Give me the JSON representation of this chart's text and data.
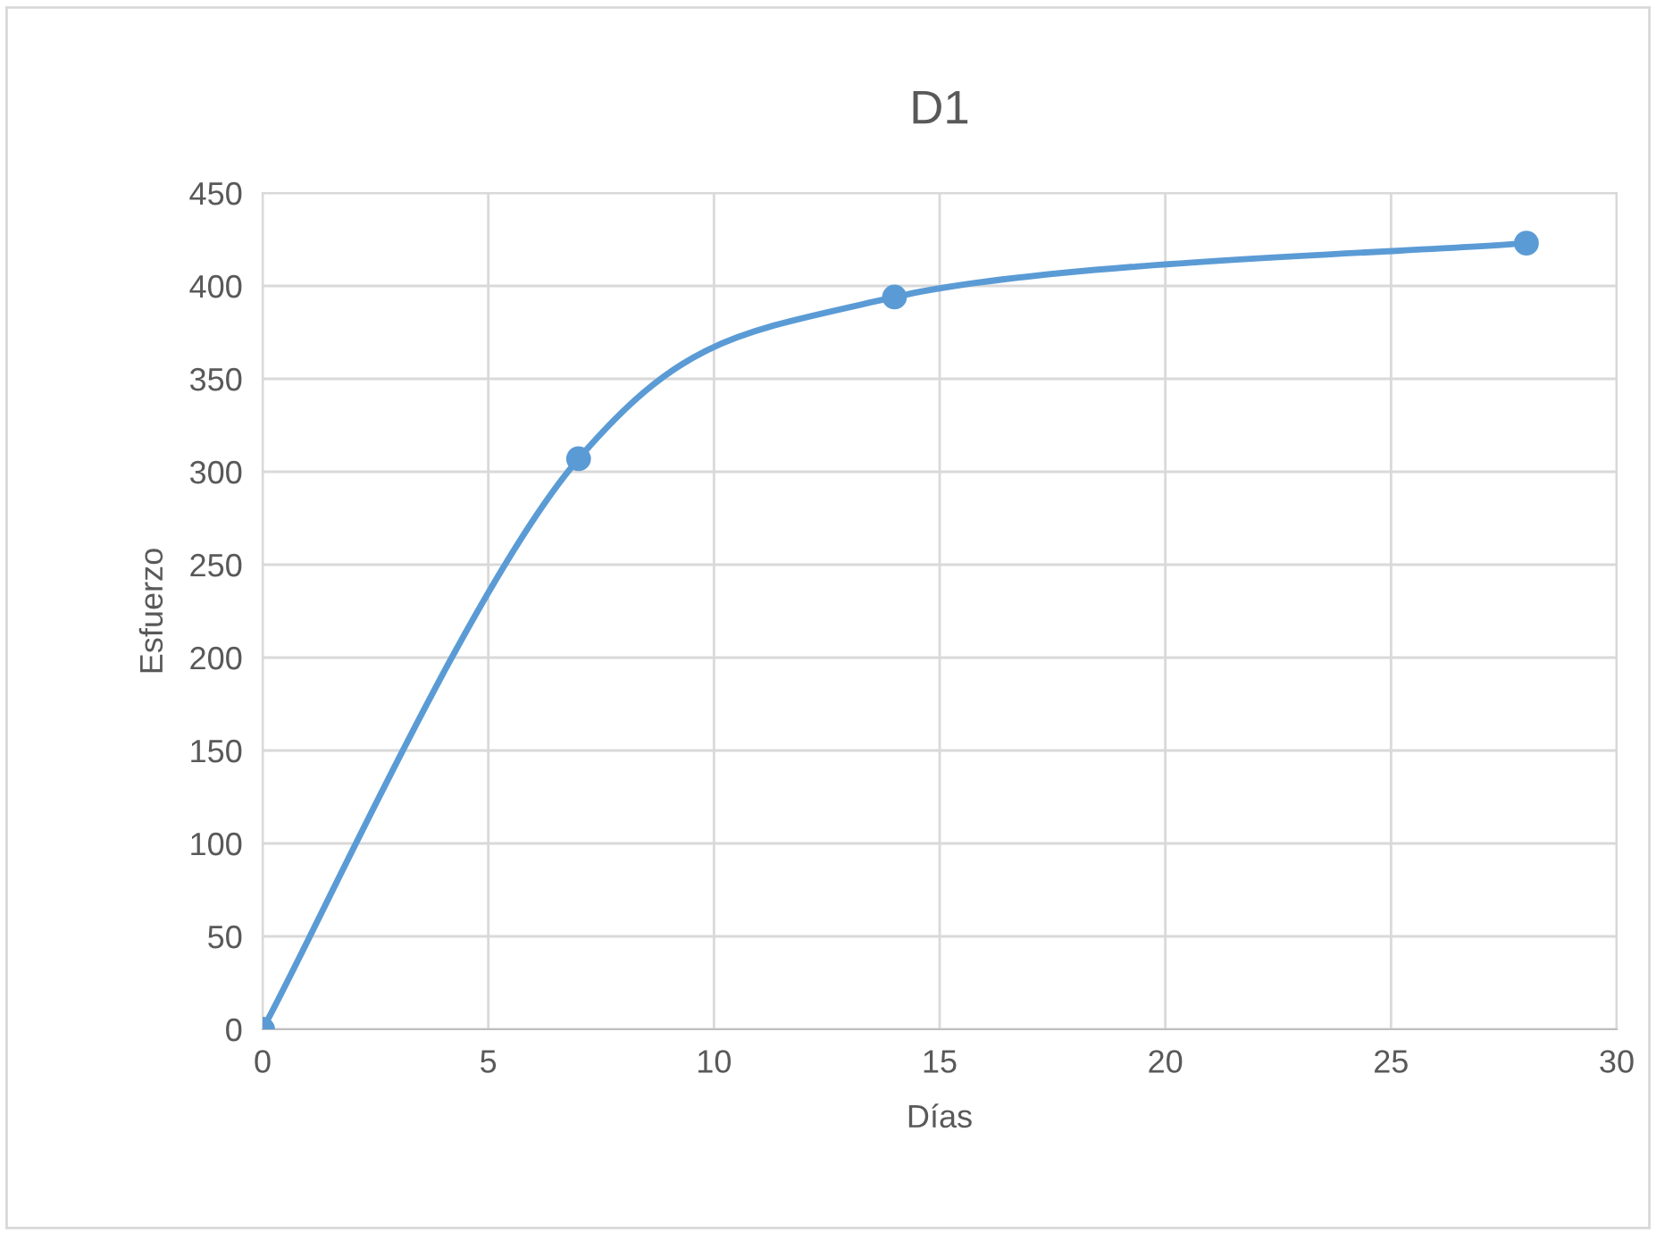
{
  "chart_data": {
    "type": "line",
    "title": "D1",
    "xlabel": "Días",
    "ylabel": "Esfuerzo",
    "x": [
      0,
      7,
      14,
      28
    ],
    "series": [
      {
        "color": "#5b9bd5",
        "values": [
          0,
          307,
          394,
          423
        ]
      }
    ],
    "xlim": [
      0,
      30
    ],
    "xticks": [
      0,
      5,
      10,
      15,
      20,
      25,
      30
    ],
    "ylim": [
      0,
      450
    ],
    "yticks": [
      0,
      50,
      100,
      150,
      200,
      250,
      300,
      350,
      400,
      450
    ],
    "grid": true,
    "marker": "circle",
    "line_style": "solid",
    "legend": false
  }
}
